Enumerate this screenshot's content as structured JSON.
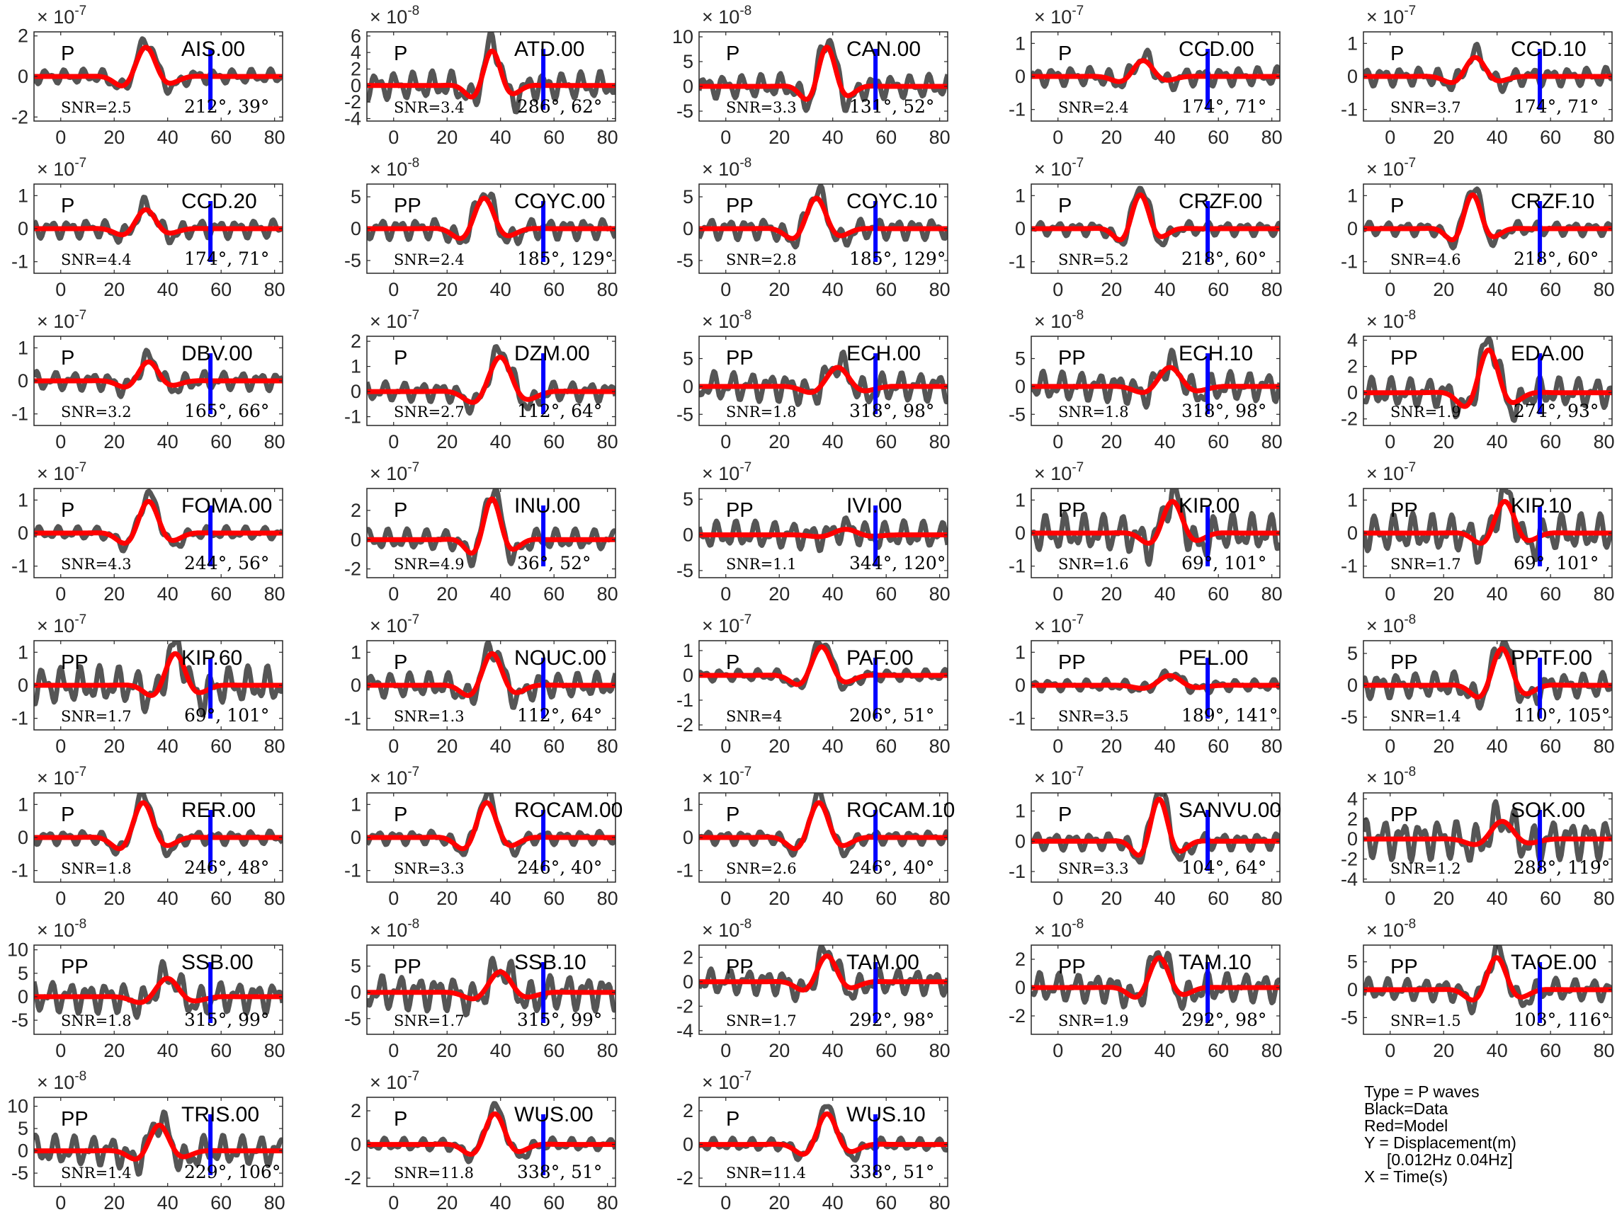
{
  "legend": {
    "lines": [
      "Type = P waves",
      "Black=Data",
      "Red=Model",
      "Y = Displacement(m)",
      "     [0.012Hz 0.04Hz]",
      "X = Time(s)"
    ]
  },
  "colors": {
    "data": "#555555",
    "model": "#ff0000",
    "marker": "#0000ff",
    "axis": "#262626"
  },
  "chart_data": {
    "type": "line",
    "xlim": [
      -10,
      83
    ],
    "xticks": [
      0,
      20,
      40,
      60,
      80
    ],
    "marker_time": 56,
    "series": [
      "Data",
      "Model"
    ],
    "panels": [
      {
        "station": "AIS.00",
        "phase": "P",
        "snr": "SNR=2.5",
        "az": "212°, 39°",
        "exp": "-7",
        "yticks": [
          -2,
          0,
          2
        ],
        "ylim": [
          -2.2,
          2.2
        ],
        "amp": 1.5,
        "peak": 32,
        "w": 7,
        "noise": 0.25
      },
      {
        "station": "ATD.00",
        "phase": "P",
        "snr": "SNR=3.4",
        "az": "286°, 62°",
        "exp": "-8",
        "yticks": [
          -4,
          -2,
          0,
          2,
          4,
          6
        ],
        "ylim": [
          -4.3,
          6.5
        ],
        "amp": 4.5,
        "peak": 37,
        "w": 6,
        "noise": 0.4
      },
      {
        "station": "CAN.00",
        "phase": "P",
        "snr": "SNR=3.3",
        "az": "131°, 52°",
        "exp": "-8",
        "yticks": [
          -5,
          0,
          5,
          10
        ],
        "ylim": [
          -7,
          11
        ],
        "amp": 8.5,
        "peak": 38,
        "w": 6,
        "noise": 0.3
      },
      {
        "station": "CCD.00",
        "phase": "P",
        "snr": "SNR=2.4",
        "az": "174°, 71°",
        "exp": "-7",
        "yticks": [
          -1,
          0,
          1
        ],
        "ylim": [
          -1.35,
          1.35
        ],
        "amp": 0.5,
        "peak": 32,
        "w": 7,
        "noise": 0.6
      },
      {
        "station": "CCD.10",
        "phase": "P",
        "snr": "SNR=3.7",
        "az": "174°, 71°",
        "exp": "-7",
        "yticks": [
          -1,
          0,
          1
        ],
        "ylim": [
          -1.35,
          1.35
        ],
        "amp": 0.6,
        "peak": 32,
        "w": 7,
        "noise": 0.5
      },
      {
        "station": "CCD.20",
        "phase": "P",
        "snr": "SNR=4.4",
        "az": "174°, 71°",
        "exp": "-7",
        "yticks": [
          -1,
          0,
          1
        ],
        "ylim": [
          -1.35,
          1.35
        ],
        "amp": 0.6,
        "peak": 32,
        "w": 7,
        "noise": 0.5
      },
      {
        "station": "COYC.00",
        "phase": "PP",
        "snr": "SNR=2.4",
        "az": "185°, 129°",
        "exp": "-8",
        "yticks": [
          -5,
          0,
          5
        ],
        "ylim": [
          -7,
          7
        ],
        "amp": 5,
        "peak": 34,
        "w": 7,
        "noise": 0.35
      },
      {
        "station": "COYC.10",
        "phase": "PP",
        "snr": "SNR=2.8",
        "az": "185°, 129°",
        "exp": "-8",
        "yticks": [
          -5,
          0,
          5
        ],
        "ylim": [
          -7,
          7
        ],
        "amp": 5,
        "peak": 34,
        "w": 7,
        "noise": 0.35
      },
      {
        "station": "CRZF.00",
        "phase": "P",
        "snr": "SNR=5.2",
        "az": "218°, 60°",
        "exp": "-7",
        "yticks": [
          -1,
          0,
          1
        ],
        "ylim": [
          -1.35,
          1.35
        ],
        "amp": 1.1,
        "peak": 31,
        "w": 6,
        "noise": 0.2
      },
      {
        "station": "CRZF.10",
        "phase": "P",
        "snr": "SNR=4.6",
        "az": "218°, 60°",
        "exp": "-7",
        "yticks": [
          -1,
          0,
          1
        ],
        "ylim": [
          -1.35,
          1.35
        ],
        "amp": 1.1,
        "peak": 31,
        "w": 6,
        "noise": 0.2
      },
      {
        "station": "DBV.00",
        "phase": "P",
        "snr": "SNR=3.2",
        "az": "165°, 66°",
        "exp": "-7",
        "yticks": [
          -1,
          0,
          1
        ],
        "ylim": [
          -1.35,
          1.35
        ],
        "amp": 0.6,
        "peak": 33,
        "w": 7,
        "noise": 0.5
      },
      {
        "station": "DZM.00",
        "phase": "P",
        "snr": "SNR=2.7",
        "az": "112°, 64°",
        "exp": "-7",
        "yticks": [
          -1,
          0,
          1,
          2
        ],
        "ylim": [
          -1.35,
          2.2
        ],
        "amp": 1.4,
        "peak": 40,
        "w": 8,
        "noise": 0.3
      },
      {
        "station": "ECH.00",
        "phase": "PP",
        "snr": "SNR=1.8",
        "az": "318°, 98°",
        "exp": "-8",
        "yticks": [
          -5,
          0,
          5
        ],
        "ylim": [
          -7,
          9
        ],
        "amp": 3.5,
        "peak": 42,
        "w": 8,
        "noise": 0.8
      },
      {
        "station": "ECH.10",
        "phase": "PP",
        "snr": "SNR=1.8",
        "az": "318°, 98°",
        "exp": "-8",
        "yticks": [
          -5,
          0,
          5
        ],
        "ylim": [
          -7,
          9
        ],
        "amp": 3.5,
        "peak": 42,
        "w": 8,
        "noise": 0.8
      },
      {
        "station": "EDA.00",
        "phase": "PP",
        "snr": "SNR=1.9",
        "az": "274°, 93°",
        "exp": "-8",
        "yticks": [
          -2,
          0,
          2,
          4
        ],
        "ylim": [
          -2.5,
          4.3
        ],
        "amp": 3.4,
        "peak": 37,
        "w": 7,
        "noise": 0.35
      },
      {
        "station": "FOMA.00",
        "phase": "P",
        "snr": "SNR=4.3",
        "az": "244°, 56°",
        "exp": "-7",
        "yticks": [
          -1,
          0,
          1
        ],
        "ylim": [
          -1.35,
          1.35
        ],
        "amp": 1.0,
        "peak": 33,
        "w": 7,
        "noise": 0.2
      },
      {
        "station": "INU.00",
        "phase": "P",
        "snr": "SNR=4.9",
        "az": "36°, 52°",
        "exp": "-7",
        "yticks": [
          -2,
          0,
          2
        ],
        "ylim": [
          -2.6,
          3.5
        ],
        "amp": 3.0,
        "peak": 37,
        "w": 6,
        "noise": 0.25
      },
      {
        "station": "IVI.00",
        "phase": "PP",
        "snr": "SNR=1.1",
        "az": "344°, 120°",
        "exp": "-7",
        "yticks": [
          -5,
          0,
          5
        ],
        "ylim": [
          -6,
          6.5
        ],
        "amp": 0.8,
        "peak": 45,
        "w": 8,
        "noise": 2.5
      },
      {
        "station": "KIP.00",
        "phase": "PP",
        "snr": "SNR=1.6",
        "az": "69°, 101°",
        "exp": "-7",
        "yticks": [
          -1,
          0,
          1
        ],
        "ylim": [
          -1.35,
          1.35
        ],
        "amp": 1.0,
        "peak": 43,
        "w": 7,
        "noise": 0.6
      },
      {
        "station": "KIP.10",
        "phase": "PP",
        "snr": "SNR=1.7",
        "az": "69°, 101°",
        "exp": "-7",
        "yticks": [
          -1,
          0,
          1
        ],
        "ylim": [
          -1.35,
          1.35
        ],
        "amp": 1.0,
        "peak": 43,
        "w": 7,
        "noise": 0.6
      },
      {
        "station": "KIP.60",
        "phase": "PP",
        "snr": "SNR=1.7",
        "az": "69°, 101°",
        "exp": "-7",
        "yticks": [
          -1,
          0,
          1
        ],
        "ylim": [
          -1.35,
          1.35
        ],
        "amp": 1.0,
        "peak": 43,
        "w": 7,
        "noise": 0.6
      },
      {
        "station": "NOUC.00",
        "phase": "P",
        "snr": "SNR=1.3",
        "az": "112°, 64°",
        "exp": "-7",
        "yticks": [
          -1,
          0,
          1
        ],
        "ylim": [
          -1.35,
          1.35
        ],
        "amp": 1.0,
        "peak": 37,
        "w": 7,
        "noise": 0.4
      },
      {
        "station": "PAF.00",
        "phase": "P",
        "snr": "SNR=4",
        "az": "206°, 51°",
        "exp": "-7",
        "yticks": [
          -2,
          -1,
          0,
          1
        ],
        "ylim": [
          -2.2,
          1.4
        ],
        "amp": 1.2,
        "peak": 36,
        "w": 7,
        "noise": 0.2
      },
      {
        "station": "PEL.00",
        "phase": "PP",
        "snr": "SNR=3.5",
        "az": "189°, 141°",
        "exp": "-7",
        "yticks": [
          -1,
          0,
          1
        ],
        "ylim": [
          -1.35,
          1.35
        ],
        "amp": 0.3,
        "peak": 42,
        "w": 8,
        "noise": 0.6
      },
      {
        "station": "PPTF.00",
        "phase": "PP",
        "snr": "SNR=1.4",
        "az": "110°, 105°",
        "exp": "-8",
        "yticks": [
          -5,
          0,
          5
        ],
        "ylim": [
          -7,
          7
        ],
        "amp": 6,
        "peak": 42,
        "w": 7,
        "noise": 0.35
      },
      {
        "station": "RER.00",
        "phase": "P",
        "snr": "SNR=1.8",
        "az": "246°, 48°",
        "exp": "-7",
        "yticks": [
          -1,
          0,
          1
        ],
        "ylim": [
          -1.35,
          1.35
        ],
        "amp": 1.1,
        "peak": 31,
        "w": 7,
        "noise": 0.2
      },
      {
        "station": "ROCAM.00",
        "phase": "P",
        "snr": "SNR=3.3",
        "az": "246°, 40°",
        "exp": "-7",
        "yticks": [
          -1,
          0,
          1
        ],
        "ylim": [
          -1.35,
          1.35
        ],
        "amp": 1.1,
        "peak": 35,
        "w": 7,
        "noise": 0.2
      },
      {
        "station": "ROCAM.10",
        "phase": "P",
        "snr": "SNR=2.6",
        "az": "246°, 40°",
        "exp": "-7",
        "yticks": [
          -1,
          0,
          1
        ],
        "ylim": [
          -1.35,
          1.35
        ],
        "amp": 1.1,
        "peak": 35,
        "w": 7,
        "noise": 0.2
      },
      {
        "station": "SANVU.00",
        "phase": "P",
        "snr": "SNR=3.3",
        "az": "104°, 64°",
        "exp": "-7",
        "yticks": [
          -1,
          0,
          1
        ],
        "ylim": [
          -1.35,
          1.6
        ],
        "amp": 1.5,
        "peak": 38,
        "w": 6,
        "noise": 0.2
      },
      {
        "station": "SOK.00",
        "phase": "PP",
        "snr": "SNR=1.2",
        "az": "288°, 119°",
        "exp": "-8",
        "yticks": [
          -4,
          -2,
          0,
          2,
          4
        ],
        "ylim": [
          -4.3,
          4.6
        ],
        "amp": 1.8,
        "peak": 42,
        "w": 8,
        "noise": 1.2
      },
      {
        "station": "SSB.00",
        "phase": "PP",
        "snr": "SNR=1.8",
        "az": "315°, 99°",
        "exp": "-8",
        "yticks": [
          -5,
          0,
          5,
          10
        ],
        "ylim": [
          -8,
          11
        ],
        "amp": 4,
        "peak": 40,
        "w": 8,
        "noise": 0.9
      },
      {
        "station": "SSB.10",
        "phase": "PP",
        "snr": "SNR=1.7",
        "az": "315°, 99°",
        "exp": "-8",
        "yticks": [
          -5,
          0,
          5
        ],
        "ylim": [
          -8,
          9
        ],
        "amp": 4,
        "peak": 40,
        "w": 8,
        "noise": 0.9
      },
      {
        "station": "TAM.00",
        "phase": "PP",
        "snr": "SNR=1.7",
        "az": "292°, 98°",
        "exp": "-8",
        "yticks": [
          -4,
          -2,
          0,
          2
        ],
        "ylim": [
          -4.3,
          3
        ],
        "amp": 2.2,
        "peak": 38,
        "w": 7,
        "noise": 0.5
      },
      {
        "station": "TAM.10",
        "phase": "PP",
        "snr": "SNR=1.9",
        "az": "292°, 98°",
        "exp": "-8",
        "yticks": [
          -2,
          0,
          2
        ],
        "ylim": [
          -3.3,
          3
        ],
        "amp": 2.2,
        "peak": 38,
        "w": 7,
        "noise": 0.5
      },
      {
        "station": "TAOE.00",
        "phase": "PP",
        "snr": "SNR=1.5",
        "az": "103°, 116°",
        "exp": "-8",
        "yticks": [
          -5,
          0,
          5
        ],
        "ylim": [
          -8,
          8
        ],
        "amp": 6,
        "peak": 40,
        "w": 7,
        "noise": 0.35
      },
      {
        "station": "TRIS.00",
        "phase": "PP",
        "snr": "SNR=1.4",
        "az": "229°, 106°",
        "exp": "-8",
        "yticks": [
          -5,
          0,
          5,
          10
        ],
        "ylim": [
          -8,
          12
        ],
        "amp": 6,
        "peak": 37,
        "w": 7,
        "noise": 0.6
      },
      {
        "station": "WUS.00",
        "phase": "P",
        "snr": "SNR=11.8",
        "az": "338°, 51°",
        "exp": "-7",
        "yticks": [
          -2,
          0,
          2
        ],
        "ylim": [
          -2.5,
          2.8
        ],
        "amp": 1.9,
        "peak": 38,
        "w": 7,
        "noise": 0.2
      },
      {
        "station": "WUS.10",
        "phase": "P",
        "snr": "SNR=11.4",
        "az": "338°, 51°",
        "exp": "-7",
        "yticks": [
          -2,
          0,
          2
        ],
        "ylim": [
          -2.5,
          2.8
        ],
        "amp": 1.9,
        "peak": 38,
        "w": 7,
        "noise": 0.2
      }
    ]
  }
}
